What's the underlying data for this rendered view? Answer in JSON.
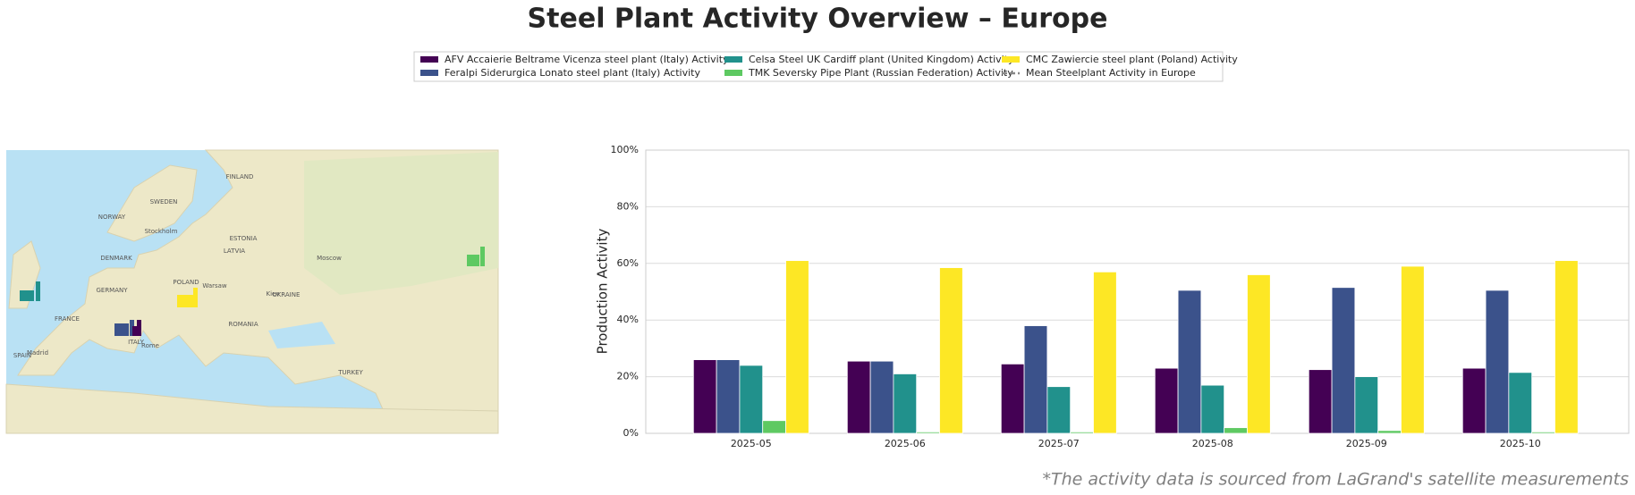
{
  "chart_data": {
    "type": "bar",
    "title": "Steel Plant Activity Overview – Europe",
    "ylabel": "Production Activity",
    "footnote": "*The activity data is sourced from LaGrand's satellite measurements",
    "categories": [
      "2025-05",
      "2025-06",
      "2025-07",
      "2025-08",
      "2025-09",
      "2025-10"
    ],
    "series": [
      {
        "name": "AFV Accaierie Beltrame Vicenza steel plant (Italy) Activity",
        "color": "#440154",
        "values": [
          26,
          25.5,
          24.5,
          23,
          22.5,
          23
        ]
      },
      {
        "name": "Feralpi Siderurgica Lonato steel plant (Italy) Activity",
        "color": "#3b528b",
        "values": [
          26,
          25.5,
          38,
          50.5,
          51.5,
          50.5
        ]
      },
      {
        "name": "Celsa Steel UK Cardiff plant (United Kingdom) Activity",
        "color": "#21918c",
        "values": [
          24,
          21,
          16.5,
          17,
          20,
          21.5
        ]
      },
      {
        "name": "TMK Seversky Pipe Plant (Russian Federation) Activity",
        "color": "#5ec962",
        "values": [
          4.5,
          0.5,
          0.5,
          2,
          1,
          0.5
        ]
      },
      {
        "name": "CMC Zawiercie steel plant (Poland) Activity",
        "color": "#fde725",
        "values": [
          61,
          58.5,
          57,
          56,
          59,
          61
        ]
      }
    ],
    "mean_line": {
      "name": "Mean Steelplant Activity in Europe",
      "color": "#888888"
    },
    "ylim": [
      0,
      100
    ],
    "yticks": [
      {
        "value": 0,
        "label": "0%"
      },
      {
        "value": 20,
        "label": "20%"
      },
      {
        "value": 40,
        "label": "40%"
      },
      {
        "value": 60,
        "label": "60%"
      },
      {
        "value": 80,
        "label": "80%"
      },
      {
        "value": 100,
        "label": "100%"
      }
    ],
    "grid": true,
    "map_labels": [
      "NORWAY",
      "SWEDEN",
      "FINLAND",
      "ESTONIA",
      "LATVIA",
      "DENMARK",
      "POLAND",
      "GERMANY",
      "FRANCE",
      "SPAIN",
      "ITALY",
      "UKRAINE",
      "ROMANIA",
      "TURKEY",
      "Moscow",
      "Warsaw",
      "Rome",
      "Stockholm",
      "Madrid",
      "Kiev"
    ]
  }
}
